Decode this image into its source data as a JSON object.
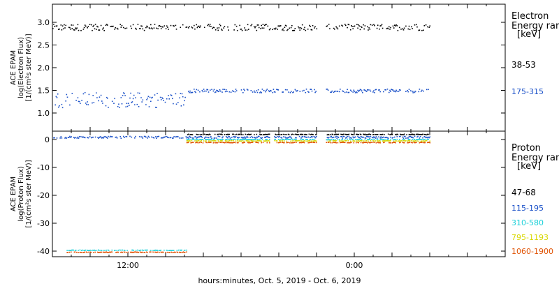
{
  "chart_data": [
    {
      "type": "scatter",
      "ylabel_lines": [
        "ACE EPAM",
        "log(Electron Flux)",
        "[1/(cm²s ster MeV)]"
      ],
      "ylim": [
        0.6,
        3.4
      ],
      "yticks": [
        1.0,
        1.5,
        2.0,
        2.5,
        3.0
      ],
      "ytick_labels": [
        "1.0",
        "1.5",
        "2.0",
        "2.5",
        "3.0"
      ],
      "legend_title_lines": [
        "Electron",
        "Energy ranges",
        "[keV]"
      ],
      "series": [
        {
          "name": "38-53",
          "color": "#000000",
          "level": 2.9,
          "spread": 0.07,
          "segments": [
            [
              0.0,
              28.0
            ],
            [
              29.0,
              40.0
            ]
          ]
        },
        {
          "name": "175-315",
          "color": "#1a50c8",
          "level": 1.3,
          "spread": 0.17,
          "segments": [
            [
              0.0,
              14.2
            ]
          ]
        },
        {
          "name": "",
          "color": "#1a50c8",
          "level": 1.5,
          "spread": 0.04,
          "segments": [
            [
              14.2,
              28.0
            ],
            [
              29.0,
              40.0
            ]
          ]
        }
      ]
    },
    {
      "type": "scatter",
      "ylabel_lines": [
        "ACE EPAM",
        "log(Proton Flux)",
        "[1/(cm²s ster MeV)]"
      ],
      "ylim": [
        -42,
        3
      ],
      "yticks": [
        -40,
        -30,
        -20,
        -10,
        0
      ],
      "ytick_labels": [
        "-40",
        "-30",
        "-20",
        "-10",
        "0"
      ],
      "legend_title_lines": [
        "Proton",
        "Energy ranges",
        "[keV]"
      ],
      "series": [
        {
          "name": "47-68",
          "color": "#000000",
          "level": 2.0,
          "spread": 0.12,
          "segments": [
            [
              14.2,
              23.0
            ],
            [
              23.5,
              28.0
            ],
            [
              29.0,
              40.0
            ]
          ]
        },
        {
          "name": "115-195",
          "color": "#1a50c8",
          "level": 1.0,
          "spread": 0.35,
          "segments": [
            [
              0.0,
              14.2
            ],
            [
              14.2,
              23.0
            ],
            [
              23.5,
              28.0
            ],
            [
              29.0,
              40.0
            ]
          ]
        },
        {
          "name": "310-580",
          "color": "#18d0d8",
          "level": 0.2,
          "spread": 0.12,
          "segments": [
            [
              14.2,
              23.0
            ],
            [
              23.5,
              28.0
            ],
            [
              29.0,
              40.0
            ]
          ]
        },
        {
          "name": "795-1193",
          "color": "#d8d800",
          "level": -0.3,
          "spread": 0.1,
          "segments": [
            [
              14.2,
              23.0
            ],
            [
              23.5,
              28.0
            ],
            [
              29.0,
              40.0
            ]
          ]
        },
        {
          "name": "1060-1900",
          "color": "#e05000",
          "level": -0.9,
          "spread": 0.1,
          "segments": [
            [
              14.2,
              23.0
            ],
            [
              23.5,
              28.0
            ],
            [
              29.0,
              40.0
            ]
          ]
        },
        {
          "name": "",
          "color": "#18d0d8",
          "level": -39.5,
          "spread": 0.1,
          "segments": [
            [
              1.5,
              14.2
            ]
          ]
        },
        {
          "name": "",
          "color": "#e05000",
          "level": -40.2,
          "spread": 0.1,
          "segments": [
            [
              1.5,
              14.2
            ]
          ]
        }
      ]
    }
  ],
  "xaxis": {
    "range_hours": [
      0,
      48
    ],
    "ticks": [
      {
        "hour": 8,
        "label": "12:00"
      },
      {
        "hour": 20,
        "label": ""
      },
      {
        "hour": 32,
        "label": "0:00"
      },
      {
        "hour": 44,
        "label": ""
      }
    ],
    "xlabel": "hours:minutes, Oct.  5, 2019 - Oct.  6, 2019"
  }
}
